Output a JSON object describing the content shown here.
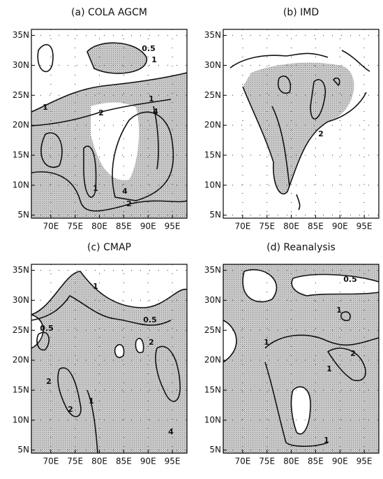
{
  "panels": [
    {
      "title": "(a) COLA AGCM",
      "lat_range": [
        4.5,
        36
      ],
      "lon_range": [
        66,
        98
      ],
      "lat_ticks": [
        {
          "value": 5,
          "label": "5N"
        },
        {
          "value": 10,
          "label": "10N"
        },
        {
          "value": 15,
          "label": "15N"
        },
        {
          "value": 20,
          "label": "20N"
        },
        {
          "value": 25,
          "label": "25N"
        },
        {
          "value": 30,
          "label": "30N"
        },
        {
          "value": 35,
          "label": "35N"
        }
      ],
      "lon_ticks": [
        {
          "value": 70,
          "label": "70E"
        },
        {
          "value": 75,
          "label": "75E"
        },
        {
          "value": 80,
          "label": "80E"
        },
        {
          "value": 85,
          "label": "85E"
        },
        {
          "value": 90,
          "label": "90E"
        },
        {
          "value": 95,
          "label": "95E"
        }
      ],
      "contour_labels": [
        0.5,
        1,
        1,
        2,
        1,
        4,
        1,
        4,
        2
      ]
    },
    {
      "title": "(b) IMD",
      "lat_range": [
        4.5,
        36
      ],
      "lon_range": [
        66,
        98
      ],
      "lat_ticks": [
        {
          "value": 5,
          "label": "5N"
        },
        {
          "value": 10,
          "label": "10N"
        },
        {
          "value": 15,
          "label": "15N"
        },
        {
          "value": 20,
          "label": "20N"
        },
        {
          "value": 25,
          "label": "25N"
        },
        {
          "value": 30,
          "label": "30N"
        },
        {
          "value": 35,
          "label": "35N"
        }
      ],
      "lon_ticks": [
        {
          "value": 70,
          "label": "70E"
        },
        {
          "value": 75,
          "label": "75E"
        },
        {
          "value": 80,
          "label": "80E"
        },
        {
          "value": 85,
          "label": "85E"
        },
        {
          "value": 90,
          "label": "90E"
        },
        {
          "value": 95,
          "label": "95E"
        }
      ],
      "contour_labels": [
        2
      ]
    },
    {
      "title": "(c) CMAP",
      "lat_range": [
        4.5,
        36
      ],
      "lon_range": [
        66,
        98
      ],
      "lat_ticks": [
        {
          "value": 5,
          "label": "5N"
        },
        {
          "value": 10,
          "label": "10N"
        },
        {
          "value": 15,
          "label": "15N"
        },
        {
          "value": 20,
          "label": "20N"
        },
        {
          "value": 25,
          "label": "25N"
        },
        {
          "value": 30,
          "label": "30N"
        },
        {
          "value": 35,
          "label": "35N"
        }
      ],
      "lon_ticks": [
        {
          "value": 70,
          "label": "70E"
        },
        {
          "value": 75,
          "label": "75E"
        },
        {
          "value": 80,
          "label": "80E"
        },
        {
          "value": 85,
          "label": "85E"
        },
        {
          "value": 90,
          "label": "90E"
        },
        {
          "value": 95,
          "label": "95E"
        }
      ],
      "contour_labels": [
        1,
        0.5,
        0.5,
        2,
        2,
        2,
        1,
        4
      ]
    },
    {
      "title": "(d) Reanalysis",
      "lat_range": [
        4.5,
        36
      ],
      "lon_range": [
        66,
        98
      ],
      "lat_ticks": [
        {
          "value": 5,
          "label": "5N"
        },
        {
          "value": 10,
          "label": "10N"
        },
        {
          "value": 15,
          "label": "15N"
        },
        {
          "value": 20,
          "label": "20N"
        },
        {
          "value": 25,
          "label": "25N"
        },
        {
          "value": 30,
          "label": "30N"
        },
        {
          "value": 35,
          "label": "35N"
        }
      ],
      "lon_ticks": [
        {
          "value": 70,
          "label": "70E"
        },
        {
          "value": 75,
          "label": "75E"
        },
        {
          "value": 80,
          "label": "80E"
        },
        {
          "value": 85,
          "label": "85E"
        },
        {
          "value": 90,
          "label": "90E"
        },
        {
          "value": 95,
          "label": "95E"
        }
      ],
      "contour_labels": [
        0.5,
        1,
        1,
        2,
        1,
        1
      ]
    }
  ]
}
